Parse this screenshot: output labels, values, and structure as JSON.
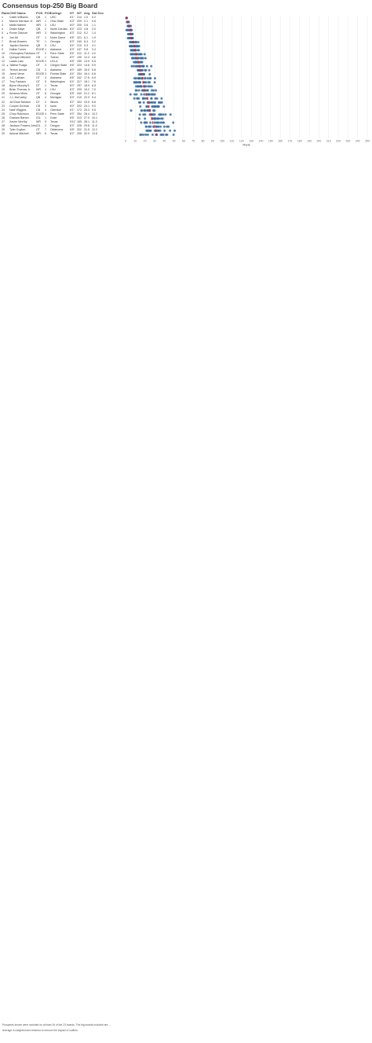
{
  "title": "Consensus top-250 Big Board",
  "headers": {
    "rank": "Rank",
    "chg": "CHG",
    "name": "Name",
    "pos": "POS",
    "pos_rank": "POS",
    "college": "College",
    "ht": "HT",
    "wt": "WT",
    "avg": "Avg",
    "sd": "Std Dev"
  },
  "axis_label": "Rank",
  "footnotes": [
    "Prospects shown were included on at least 16 of the 23 boards. The big boards included are ...",
    "Average is weighted and trimmed to remove the impact of outliers."
  ],
  "colors": {
    "dot": "#3d6fa3",
    "avg_marker": "#d9292c",
    "grid": "#e8e8e8"
  },
  "chart_data": {
    "type": "scatter",
    "xlabel": "Rank",
    "xlim": [
      0,
      250
    ],
    "tick_step": 10,
    "note": "Each row: blue dots = individual board ranks; red mark = weighted average rank.",
    "players": [
      {
        "rank": 1,
        "chg": "",
        "name": "Caleb Williams",
        "pos": "QB",
        "pos_rank": 1,
        "college": "USC",
        "ht": "6'1\"",
        "wt": "214",
        "avg": 1.0,
        "sd": 0.2
      },
      {
        "rank": 2,
        "chg": "",
        "name": "Marvin Harrison Jr.",
        "pos": "WR",
        "pos_rank": 1,
        "college": "Ohio State",
        "ht": "6'3\"",
        "wt": "209",
        "avg": 2.1,
        "sd": 0.6
      },
      {
        "rank": 3,
        "chg": "",
        "name": "Malik Nabers",
        "pos": "WR",
        "pos_rank": 2,
        "college": "LSU",
        "ht": "6'0\"",
        "wt": "200",
        "avg": 3.6,
        "sd": 1.1
      },
      {
        "rank": 4,
        "chg": "",
        "name": "Drake Maye",
        "pos": "QB",
        "pos_rank": 2,
        "college": "North Carolina",
        "ht": "6'4\"",
        "wt": "223",
        "avg": 4.8,
        "sd": 2.0
      },
      {
        "rank": 5,
        "chg": "up",
        "name": "Rome Odunze",
        "pos": "WR",
        "pos_rank": 3,
        "college": "Washington",
        "ht": "6'3\"",
        "wt": "212",
        "avg": 5.2,
        "sd": 1.4
      },
      {
        "rank": 6,
        "chg": "",
        "name": "Joe Alt",
        "pos": "OT",
        "pos_rank": 1,
        "college": "Notre Dame",
        "ht": "6'8\"",
        "wt": "321",
        "avg": 6.1,
        "sd": 1.9
      },
      {
        "rank": 7,
        "chg": "",
        "name": "Brock Bowers",
        "pos": "TE",
        "pos_rank": 1,
        "college": "Georgia",
        "ht": "6'3\"",
        "wt": "243",
        "avg": 8.4,
        "sd": 3.2
      },
      {
        "rank": 8,
        "chg": "",
        "name": "Jayden Daniels",
        "pos": "QB",
        "pos_rank": 3,
        "college": "LSU",
        "ht": "6'4\"",
        "wt": "210",
        "avg": 9.3,
        "sd": 4.1
      },
      {
        "rank": 9,
        "chg": "",
        "name": "Dallas Turner",
        "pos": "EDGE",
        "pos_rank": 1,
        "college": "Alabama",
        "ht": "6'3\"",
        "wt": "247",
        "avg": 9.8,
        "sd": 3.4
      },
      {
        "rank": 10,
        "chg": "",
        "name": "Olumuyiwa Fashanu",
        "pos": "OT",
        "pos_rank": 2,
        "college": "Penn State",
        "ht": "6'6\"",
        "wt": "312",
        "avg": 11.2,
        "sd": 4.0
      },
      {
        "rank": 11,
        "chg": "",
        "name": "Quinyon Mitchell",
        "pos": "CB",
        "pos_rank": 1,
        "college": "Toledo",
        "ht": "6'0\"",
        "wt": "195",
        "avg": 12.3,
        "sd": 4.6
      },
      {
        "rank": 12,
        "chg": "",
        "name": "Laiatu Latu",
        "pos": "EDGE",
        "pos_rank": 2,
        "college": "UCLA",
        "ht": "6'5\"",
        "wt": "259",
        "avg": 13.9,
        "sd": 5.5
      },
      {
        "rank": 13,
        "chg": "up",
        "name": "Taliese Fuaga",
        "pos": "OT",
        "pos_rank": 3,
        "college": "Oregon State",
        "ht": "6'6\"",
        "wt": "324",
        "avg": 14.8,
        "sd": 5.9
      },
      {
        "rank": 14,
        "chg": "",
        "name": "Terrion Arnold",
        "pos": "CB",
        "pos_rank": 2,
        "college": "Alabama",
        "ht": "6'0\"",
        "wt": "189",
        "avg": 15.0,
        "sd": 5.8
      },
      {
        "rank": 15,
        "chg": "",
        "name": "Jared Verse",
        "pos": "EDGE",
        "pos_rank": 3,
        "college": "Florida State",
        "ht": "6'4\"",
        "wt": "254",
        "avg": 16.4,
        "sd": 6.6
      },
      {
        "rank": 16,
        "chg": "",
        "name": "J.C. Latham",
        "pos": "OT",
        "pos_rank": 4,
        "college": "Alabama",
        "ht": "6'6\"",
        "wt": "342",
        "avg": 17.6,
        "sd": 6.9
      },
      {
        "rank": 17,
        "chg": "",
        "name": "Troy Fautanu",
        "pos": "OT",
        "pos_rank": 5,
        "college": "Washington",
        "ht": "6'4\"",
        "wt": "317",
        "avg": 18.1,
        "sd": 7.6
      },
      {
        "rank": 18,
        "chg": "",
        "name": "Byron Murphy II",
        "pos": "DT",
        "pos_rank": 1,
        "college": "Texas",
        "ht": "6'0\"",
        "wt": "297",
        "avg": 18.9,
        "sd": 6.5
      },
      {
        "rank": 19,
        "chg": "",
        "name": "Brian Thomas Jr.",
        "pos": "WR",
        "pos_rank": 4,
        "college": "LSU",
        "ht": "6'3\"",
        "wt": "209",
        "avg": 19.2,
        "sd": 7.0
      },
      {
        "rank": 20,
        "chg": "",
        "name": "Amarius Mims",
        "pos": "OT",
        "pos_rank": 6,
        "college": "Georgia",
        "ht": "6'8\"",
        "wt": "340",
        "avg": 21.2,
        "sd": 8.1
      },
      {
        "rank": 21,
        "chg": "",
        "name": "J.J. McCarthy",
        "pos": "QB",
        "pos_rank": 4,
        "college": "Michigan",
        "ht": "6'3\"",
        "wt": "219",
        "avg": 22.9,
        "sd": 9.4
      },
      {
        "rank": 22,
        "chg": "",
        "name": "Jer'Zhan Newton",
        "pos": "DT",
        "pos_rank": 2,
        "college": "Illinois",
        "ht": "6'2\"",
        "wt": "304",
        "avg": 23.5,
        "sd": 8.8
      },
      {
        "rank": 23,
        "chg": "",
        "name": "Cooper DeJean",
        "pos": "CB",
        "pos_rank": 3,
        "college": "Iowa",
        "ht": "6'0\"",
        "wt": "203",
        "avg": 24.1,
        "sd": 9.0
      },
      {
        "rank": 24,
        "chg": "",
        "name": "Nate Wiggins",
        "pos": "CB",
        "pos_rank": 4,
        "college": "Clemson",
        "ht": "6'1\"",
        "wt": "173",
        "avg": 25.3,
        "sd": 9.5
      },
      {
        "rank": 25,
        "chg": "",
        "name": "Chop Robinson",
        "pos": "EDGE",
        "pos_rank": 4,
        "college": "Penn State",
        "ht": "6'3\"",
        "wt": "254",
        "avg": 26.4,
        "sd": 10.2
      },
      {
        "rank": 26,
        "chg": "",
        "name": "Graham Barton",
        "pos": "IOL",
        "pos_rank": 1,
        "college": "Duke",
        "ht": "6'5\"",
        "wt": "313",
        "avg": 27.0,
        "sd": 10.1
      },
      {
        "rank": 27,
        "chg": "",
        "name": "Xavier Worthy",
        "pos": "WR",
        "pos_rank": 5,
        "college": "Texas",
        "ht": "5'11\"",
        "wt": "165",
        "avg": 28.1,
        "sd": 11.3
      },
      {
        "rank": 28,
        "chg": "",
        "name": "Jackson Powers-Johnson",
        "pos": "IOL",
        "pos_rank": 2,
        "college": "Oregon",
        "ht": "6'3\"",
        "wt": "328",
        "avg": 29.8,
        "sd": 11.0
      },
      {
        "rank": 29,
        "chg": "",
        "name": "Tyler Guyton",
        "pos": "OT",
        "pos_rank": 7,
        "college": "Oklahoma",
        "ht": "6'8\"",
        "wt": "322",
        "avg": 31.5,
        "sd": 12.2
      },
      {
        "rank": 30,
        "chg": "",
        "name": "Adonai Mitchell",
        "pos": "WR",
        "pos_rank": 6,
        "college": "Texas",
        "ht": "6'2\"",
        "wt": "205",
        "avg": 32.0,
        "sd": 12.6
      }
    ]
  }
}
